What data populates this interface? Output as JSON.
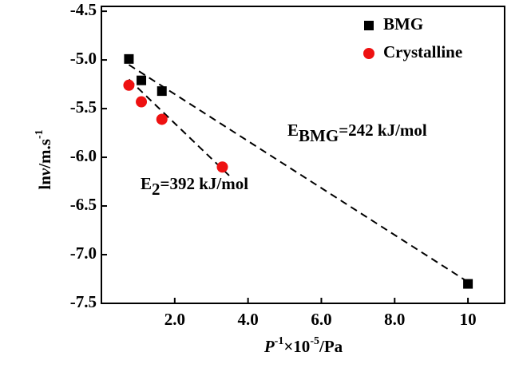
{
  "chart_data": {
    "type": "scatter",
    "x_label": {
      "main": "P",
      "sup1": "-1",
      "mid": "×10",
      "sup2": "-5",
      "rest": "/Pa"
    },
    "y_label": {
      "main": "ln",
      "ital": "v",
      "mid": "/m.s",
      "sup": "-1"
    },
    "series": [
      {
        "name": "BMG",
        "color": "#000000",
        "marker": "square",
        "x": [
          0.75,
          1.09,
          1.65,
          10
        ],
        "values": [
          -4.99,
          -5.21,
          -5.32,
          -7.3
        ]
      },
      {
        "name": "Crystalline",
        "color": "#ee1111",
        "marker": "circle",
        "x": [
          0.75,
          1.09,
          1.65,
          3.3
        ],
        "values": [
          -5.26,
          -5.43,
          -5.61,
          -6.1
        ]
      }
    ],
    "fit_lines": [
      {
        "x": [
          0.75,
          10
        ],
        "values": [
          -5.05,
          -7.28
        ]
      },
      {
        "x": [
          0.75,
          3.52
        ],
        "values": [
          -5.2,
          -6.2
        ]
      }
    ],
    "annotations": [
      {
        "main": "E",
        "sub": "BMG",
        "rest": "=242 kJ/mol"
      },
      {
        "main": "E",
        "sub": "2",
        "rest": "=392 kJ/mol"
      }
    ],
    "xlim": [
      0,
      11
    ],
    "xticks": [
      {
        "value": 2,
        "label": "2.0"
      },
      {
        "value": 4,
        "label": "4.0"
      },
      {
        "value": 6,
        "label": "6.0"
      },
      {
        "value": 8,
        "label": "8.0"
      },
      10
    ],
    "ylim": [
      -7.5,
      -4.45
    ],
    "yticks": [
      -4.5,
      {
        "value": -5,
        "label": "-5.0"
      },
      -5.5,
      {
        "value": -6,
        "label": "-6.0"
      },
      -6.5,
      {
        "value": -7,
        "label": "-7.0"
      },
      -7.5
    ],
    "legend": "top-right"
  }
}
